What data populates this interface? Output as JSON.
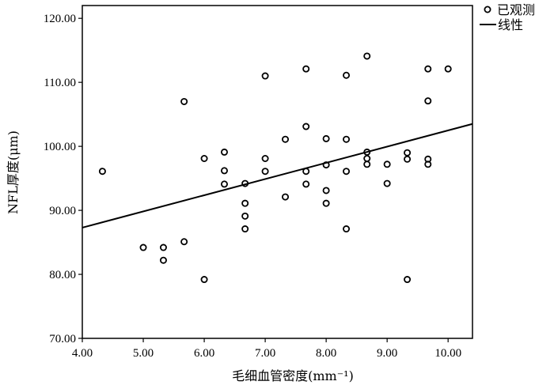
{
  "chart_data": {
    "type": "scatter",
    "xlabel": "毛细血管密度(mm⁻¹)",
    "ylabel": "NFL厚度(μm)",
    "xlim": [
      4.0,
      10.4
    ],
    "ylim": [
      70.0,
      122.0
    ],
    "x_ticks": [
      "4.00",
      "5.00",
      "6.00",
      "7.00",
      "8.00",
      "9.00",
      "10.00"
    ],
    "y_ticks": [
      "70.00",
      "80.00",
      "90.00",
      "100.00",
      "110.00",
      "120.00"
    ],
    "x_tick_values": [
      4,
      5,
      6,
      7,
      8,
      9,
      10
    ],
    "y_tick_values": [
      70,
      80,
      90,
      100,
      110,
      120
    ],
    "grid": false,
    "legend": {
      "placement": "top-right",
      "observed_label": "已观测",
      "linear_label": "线性"
    },
    "series": [
      {
        "name": "已观测",
        "kind": "scatter",
        "points": [
          [
            4.33,
            96.1
          ],
          [
            5.0,
            84.2
          ],
          [
            5.33,
            84.2
          ],
          [
            5.33,
            82.2
          ],
          [
            5.67,
            107.0
          ],
          [
            5.67,
            85.1
          ],
          [
            6.0,
            98.1
          ],
          [
            6.0,
            79.2
          ],
          [
            6.33,
            99.1
          ],
          [
            6.33,
            96.2
          ],
          [
            6.33,
            94.1
          ],
          [
            6.67,
            94.2
          ],
          [
            6.67,
            91.1
          ],
          [
            6.67,
            89.1
          ],
          [
            6.67,
            87.1
          ],
          [
            7.0,
            111.0
          ],
          [
            7.0,
            98.1
          ],
          [
            7.0,
            96.1
          ],
          [
            7.33,
            101.1
          ],
          [
            7.33,
            92.1
          ],
          [
            7.67,
            112.1
          ],
          [
            7.67,
            103.1
          ],
          [
            7.67,
            96.1
          ],
          [
            7.67,
            94.1
          ],
          [
            8.0,
            101.2
          ],
          [
            8.0,
            97.1
          ],
          [
            8.0,
            93.1
          ],
          [
            8.0,
            91.1
          ],
          [
            8.33,
            111.1
          ],
          [
            8.33,
            101.1
          ],
          [
            8.33,
            96.1
          ],
          [
            8.33,
            87.1
          ],
          [
            8.67,
            114.1
          ],
          [
            8.67,
            99.1
          ],
          [
            8.67,
            98.1
          ],
          [
            8.67,
            97.2
          ],
          [
            9.0,
            97.2
          ],
          [
            9.0,
            94.2
          ],
          [
            9.33,
            99.0
          ],
          [
            9.33,
            98.0
          ],
          [
            9.33,
            79.2
          ],
          [
            9.67,
            112.1
          ],
          [
            9.67,
            107.1
          ],
          [
            9.67,
            98.0
          ],
          [
            9.67,
            97.2
          ],
          [
            10.0,
            112.1
          ]
        ]
      },
      {
        "name": "线性",
        "kind": "line",
        "points": [
          [
            4.0,
            87.3
          ],
          [
            10.4,
            103.5
          ]
        ]
      }
    ]
  }
}
